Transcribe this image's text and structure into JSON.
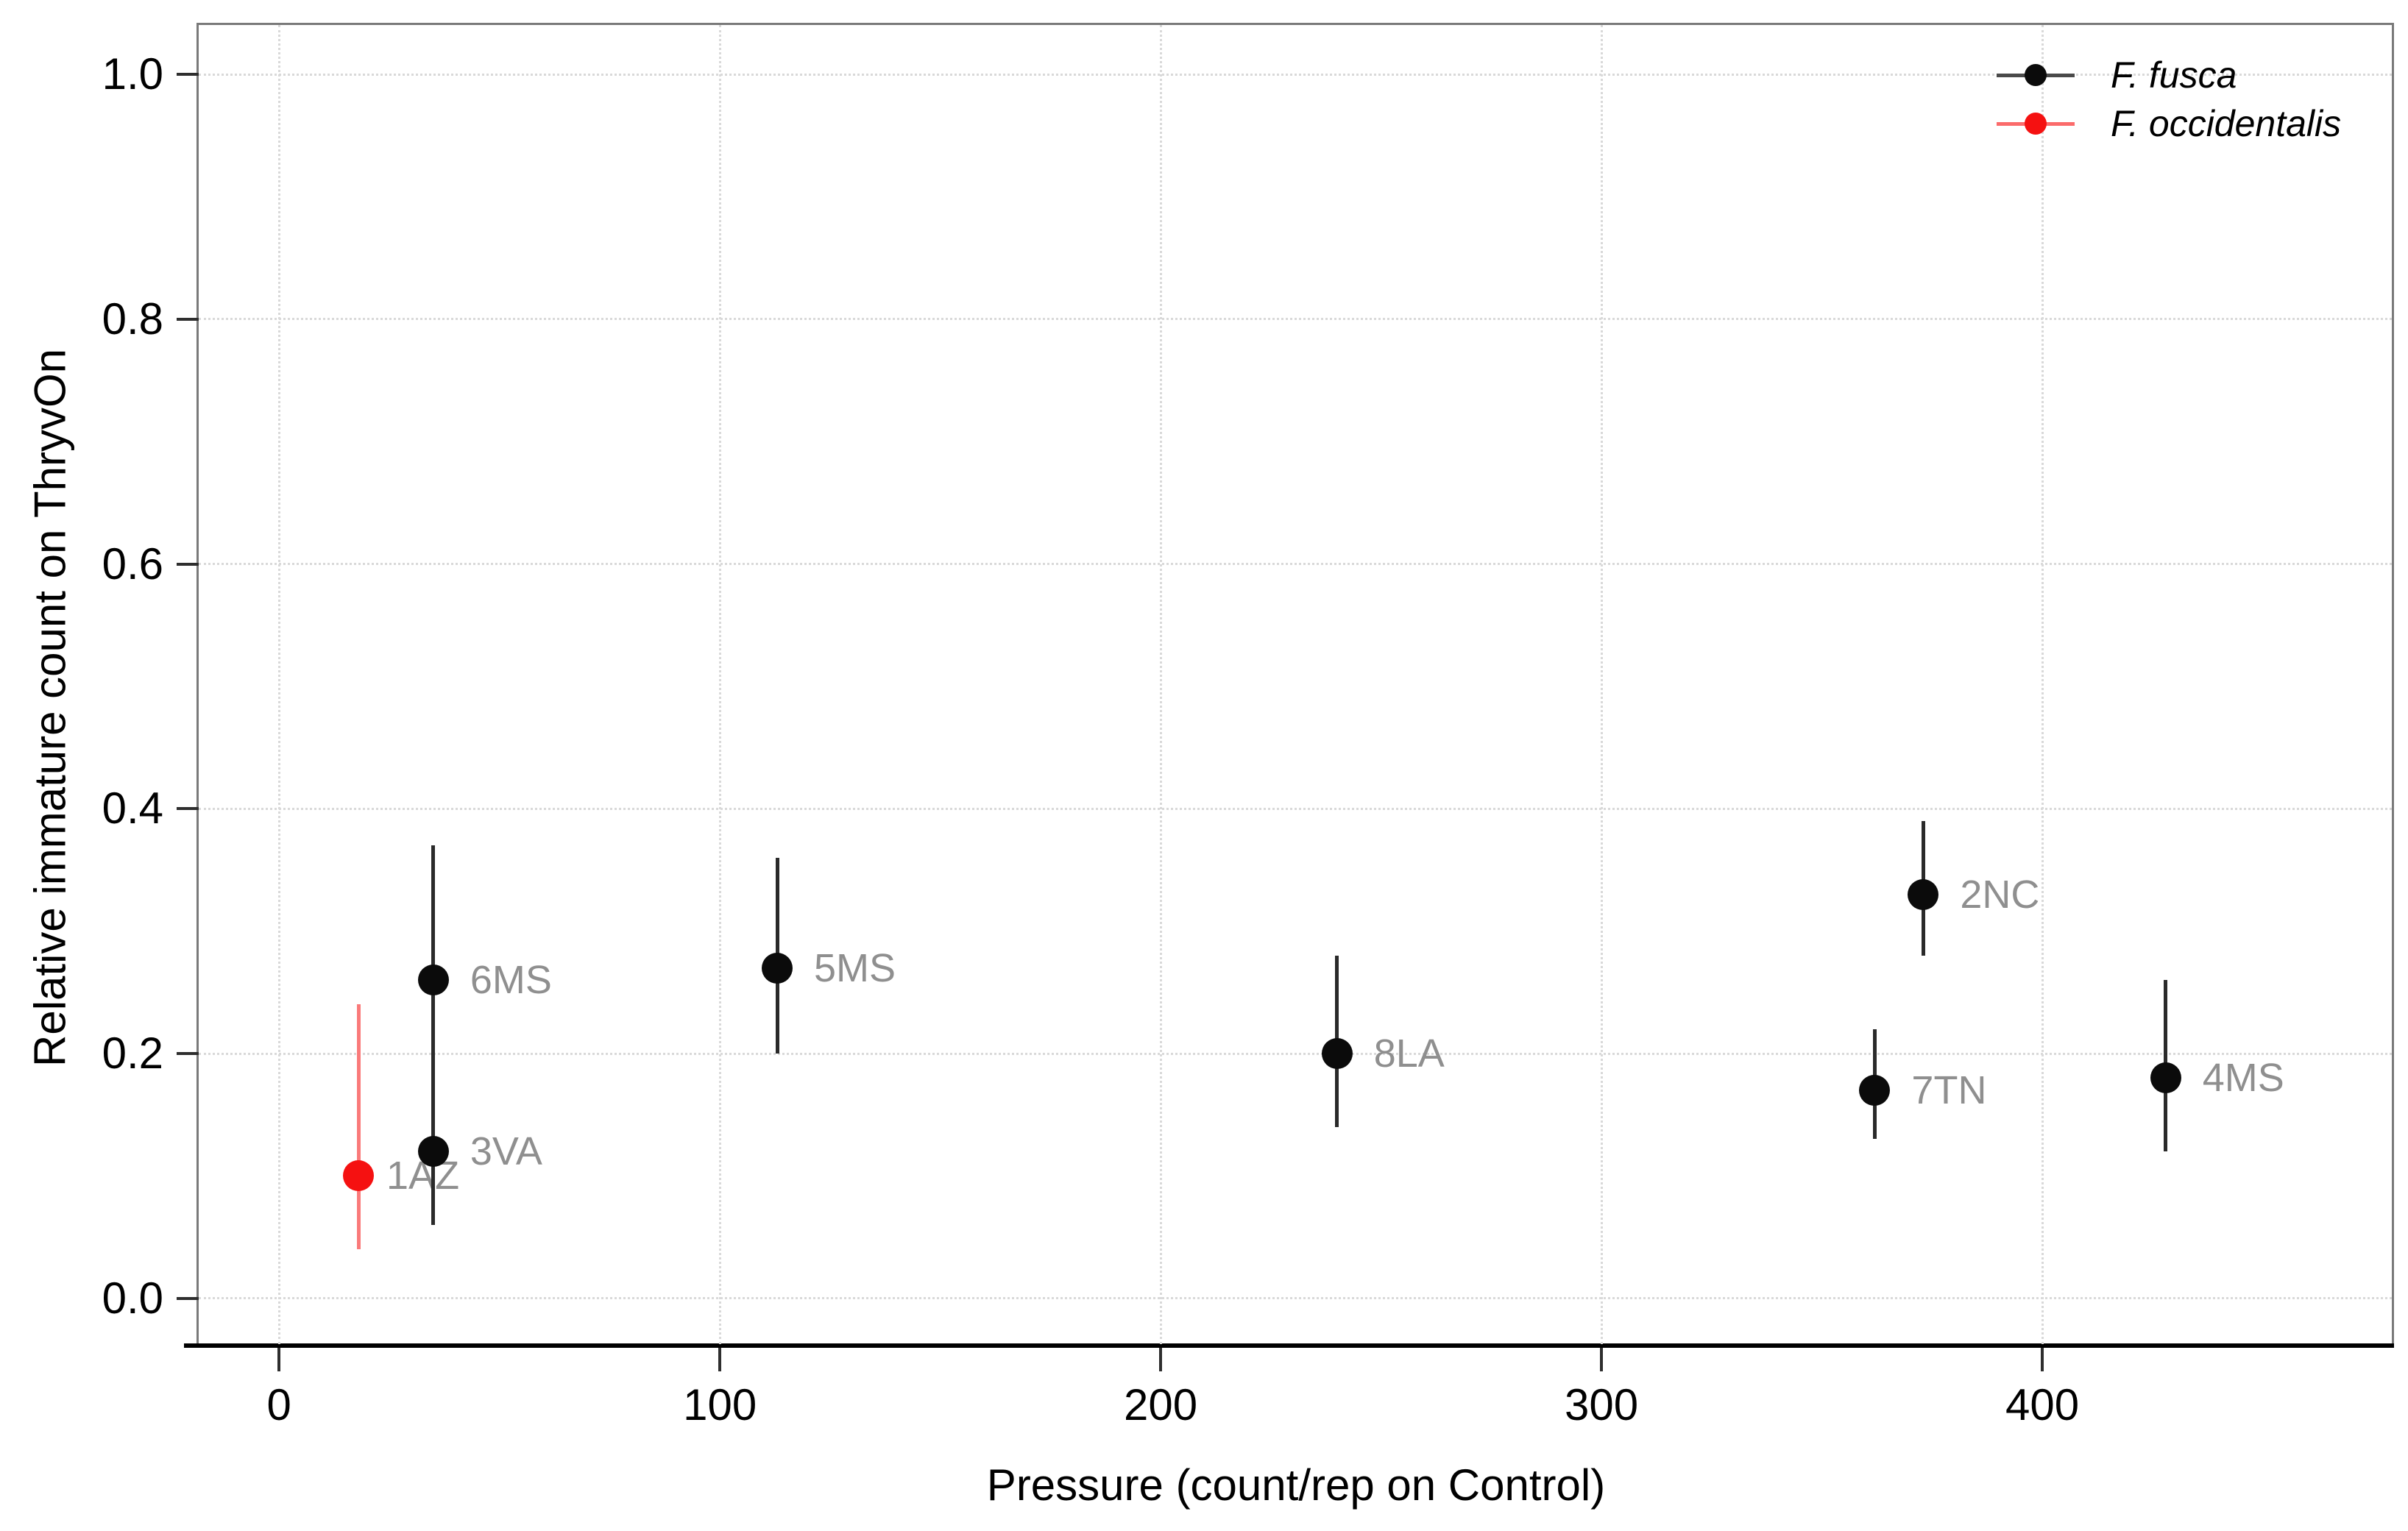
{
  "chart_data": {
    "type": "scatter",
    "title": "",
    "xlabel": "Pressure (count/rep on Control)",
    "ylabel": "Relative immature count on ThryvOn",
    "xlim": [
      -18.4,
      479.8
    ],
    "ylim": [
      -0.0392,
      1.0403
    ],
    "x_ticks": [
      "0",
      "100",
      "200",
      "300",
      "400"
    ],
    "x_tick_values": [
      0,
      100,
      200,
      300,
      400
    ],
    "y_ticks": [
      "0.0",
      "0.2",
      "0.4",
      "0.6",
      "0.8",
      "1.0"
    ],
    "y_tick_values": [
      0.0,
      0.2,
      0.4,
      0.6,
      0.8,
      1.0
    ],
    "grid": "dotted gridlines at every major tick, both axes",
    "legend_position": "top-right inside panel",
    "point_label_color": "#8f8f8f",
    "grid_color": "#d9d9d9",
    "axis_color": "#000000",
    "series": [
      {
        "name": "F. fusca",
        "dot_color": "#0b0b0b",
        "errorbar_color": "#2a2a2a",
        "legend_line_color": "#4a4a4a",
        "points": [
          {
            "label": "6MS",
            "x": 35,
            "y": 0.26,
            "y_lo": 0.18,
            "y_hi": 0.37
          },
          {
            "label": "3VA",
            "x": 35,
            "y": 0.12,
            "y_lo": 0.06,
            "y_hi": 0.2
          },
          {
            "label": "5MS",
            "x": 113,
            "y": 0.27,
            "y_lo": 0.2,
            "y_hi": 0.36
          },
          {
            "label": "8LA",
            "x": 240,
            "y": 0.2,
            "y_lo": 0.14,
            "y_hi": 0.28
          },
          {
            "label": "7TN",
            "x": 362,
            "y": 0.17,
            "y_lo": 0.13,
            "y_hi": 0.22
          },
          {
            "label": "2NC",
            "x": 373,
            "y": 0.33,
            "y_lo": 0.28,
            "y_hi": 0.39
          },
          {
            "label": "4MS",
            "x": 428,
            "y": 0.18,
            "y_lo": 0.12,
            "y_hi": 0.26
          }
        ]
      },
      {
        "name": "F. occidentalis",
        "dot_color": "#f51111",
        "errorbar_color": "#fa7a7a",
        "legend_line_color": "#fb6b6b",
        "points": [
          {
            "label": "1AZ",
            "x": 18,
            "y": 0.1,
            "y_lo": 0.04,
            "y_hi": 0.24,
            "label_dx": 38
          }
        ]
      }
    ]
  }
}
